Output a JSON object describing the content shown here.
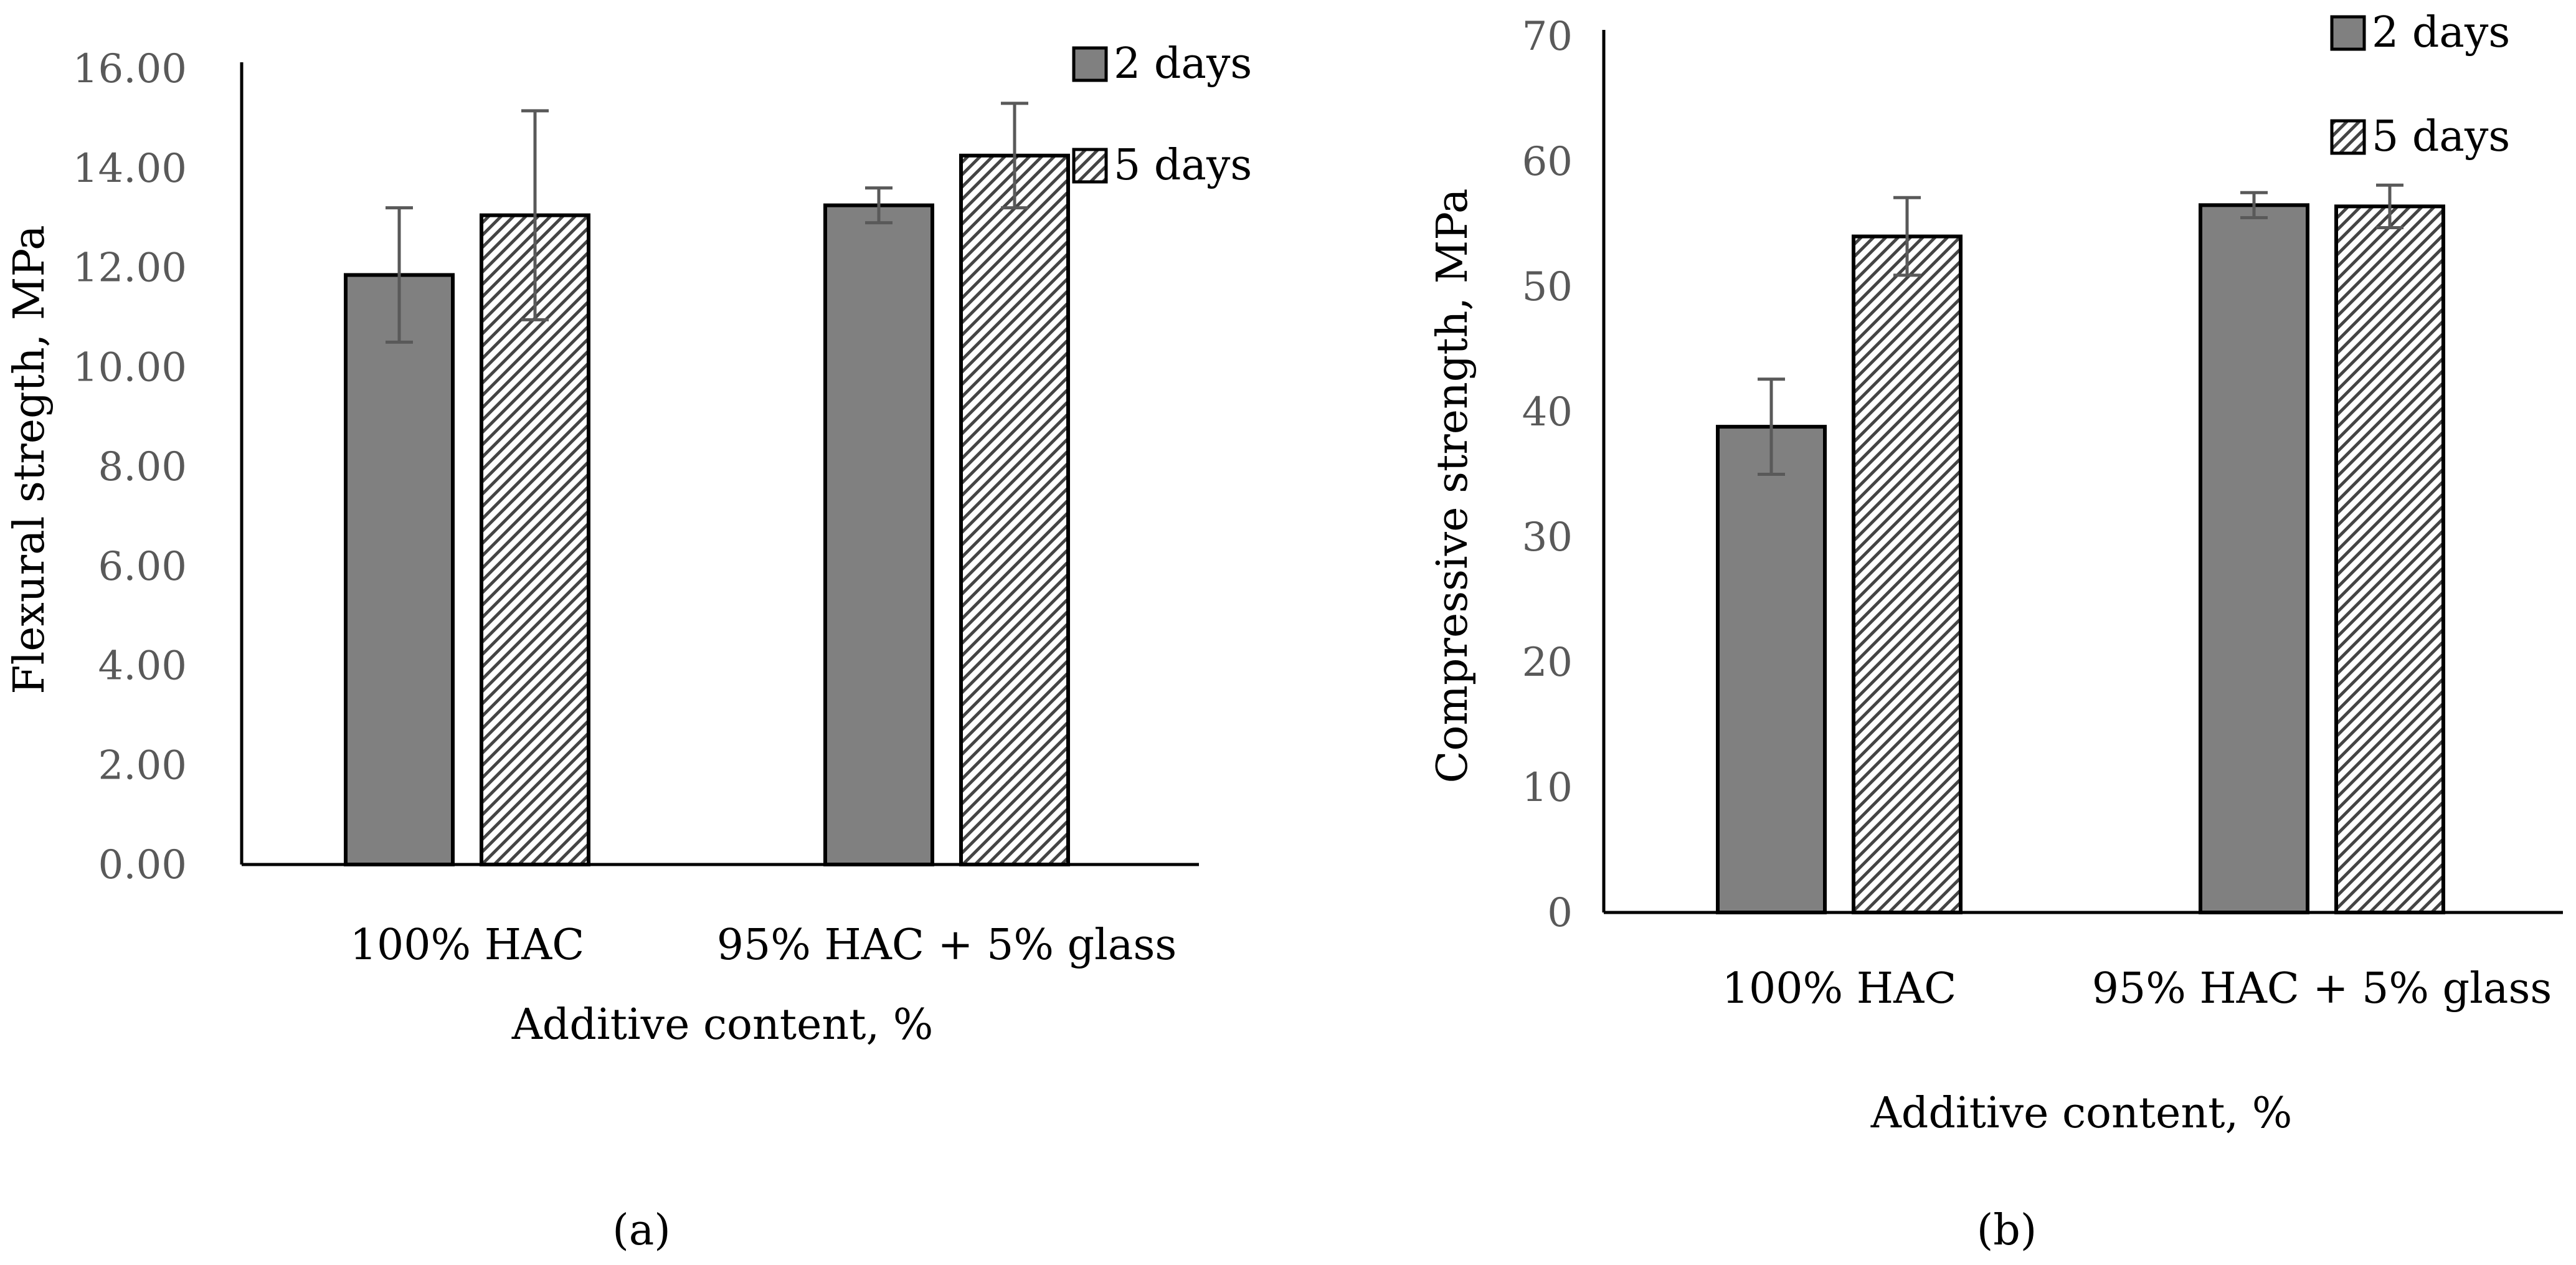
{
  "chart_data": [
    {
      "type": "bar",
      "title": "",
      "xlabel": "Additive content, %",
      "ylabel": "Flexural stregth, MPa",
      "categories": [
        "100% HAC",
        "95% HAC + 5% glass"
      ],
      "ylim": [
        0,
        16
      ],
      "yticks": [
        "0.00",
        "2.00",
        "4.00",
        "6.00",
        "8.00",
        "10.00",
        "12.00",
        "14.00",
        "16.00"
      ],
      "series": [
        {
          "name": "2 days",
          "values": [
            11.85,
            13.25
          ],
          "errors": [
            1.35,
            0.35
          ]
        },
        {
          "name": "5 days",
          "values": [
            13.05,
            14.25
          ],
          "errors": [
            2.1,
            1.05
          ]
        }
      ],
      "legend_position": "top-right",
      "caption": "(a)"
    },
    {
      "type": "bar",
      "title": "",
      "xlabel": "Additive content, %",
      "ylabel": "Compressive strength, MPa",
      "categories": [
        "100% HAC",
        "95% HAC + 5% glass"
      ],
      "ylim": [
        0,
        70
      ],
      "yticks": [
        "0",
        "10",
        "20",
        "30",
        "40",
        "50",
        "60",
        "70"
      ],
      "series": [
        {
          "name": "2 days",
          "values": [
            38.8,
            56.5
          ],
          "errors": [
            3.8,
            1.0
          ]
        },
        {
          "name": "5 days",
          "values": [
            54.0,
            56.4
          ],
          "errors": [
            3.1,
            1.7
          ]
        }
      ],
      "legend_position": "top-right",
      "caption": "(b)"
    }
  ],
  "colors": {
    "solid_fill": "#808080",
    "bar_stroke": "#000000",
    "error_bar": "#595959",
    "tick_text": "#595959",
    "label_text": "#000000"
  }
}
